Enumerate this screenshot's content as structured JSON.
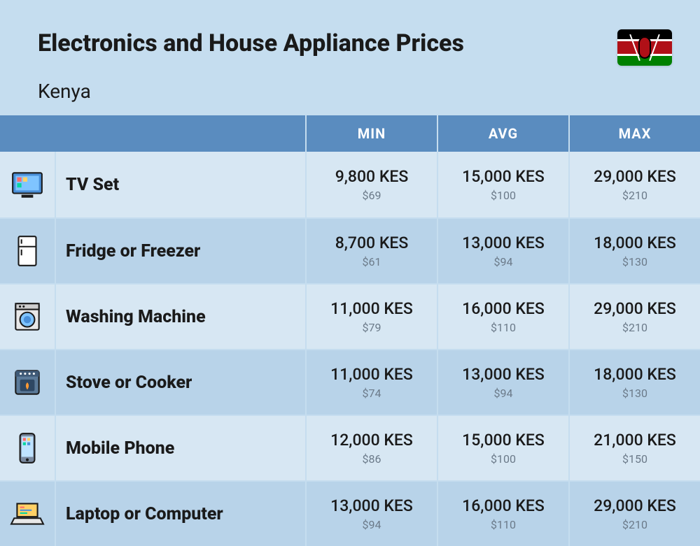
{
  "title": "Electronics and House Appliance Prices",
  "subtitle": "Kenya",
  "flag_country": "Kenya",
  "columns": {
    "min": "MIN",
    "avg": "AVG",
    "max": "MAX"
  },
  "colors": {
    "page_bg": "#c5ddef",
    "header_bg": "#5a8cbf",
    "header_text": "#ffffff",
    "row_odd_bg": "#d7e7f3",
    "row_even_bg": "#b8d3e9",
    "kes_text": "#1a1a1a",
    "usd_text": "#6b7a89",
    "title_text": "#1a1a1a"
  },
  "rows": [
    {
      "icon": "tv",
      "name": "TV Set",
      "min": {
        "kes": "9,800 KES",
        "usd": "$69"
      },
      "avg": {
        "kes": "15,000 KES",
        "usd": "$100"
      },
      "max": {
        "kes": "29,000 KES",
        "usd": "$210"
      }
    },
    {
      "icon": "fridge",
      "name": "Fridge or Freezer",
      "min": {
        "kes": "8,700 KES",
        "usd": "$61"
      },
      "avg": {
        "kes": "13,000 KES",
        "usd": "$94"
      },
      "max": {
        "kes": "18,000 KES",
        "usd": "$130"
      }
    },
    {
      "icon": "washer",
      "name": "Washing Machine",
      "min": {
        "kes": "11,000 KES",
        "usd": "$79"
      },
      "avg": {
        "kes": "16,000 KES",
        "usd": "$110"
      },
      "max": {
        "kes": "29,000 KES",
        "usd": "$210"
      }
    },
    {
      "icon": "stove",
      "name": "Stove or Cooker",
      "min": {
        "kes": "11,000 KES",
        "usd": "$74"
      },
      "avg": {
        "kes": "13,000 KES",
        "usd": "$94"
      },
      "max": {
        "kes": "18,000 KES",
        "usd": "$130"
      }
    },
    {
      "icon": "phone",
      "name": "Mobile Phone",
      "min": {
        "kes": "12,000 KES",
        "usd": "$86"
      },
      "avg": {
        "kes": "15,000 KES",
        "usd": "$100"
      },
      "max": {
        "kes": "21,000 KES",
        "usd": "$150"
      }
    },
    {
      "icon": "laptop",
      "name": "Laptop or Computer",
      "min": {
        "kes": "13,000 KES",
        "usd": "$94"
      },
      "avg": {
        "kes": "16,000 KES",
        "usd": "$110"
      },
      "max": {
        "kes": "29,000 KES",
        "usd": "$210"
      }
    }
  ]
}
